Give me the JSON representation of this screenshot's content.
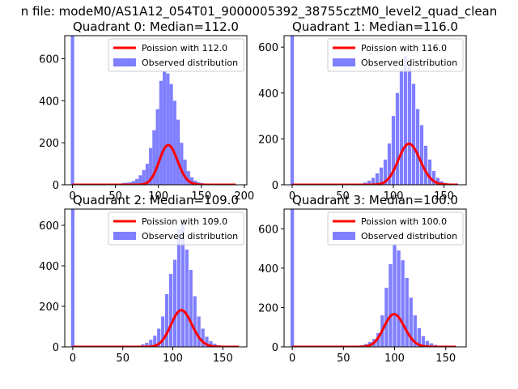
{
  "figure": {
    "suptitle": "n file: modeM0/AS1A12_054T01_9000005392_38755cztM0_level2_quad_clean",
    "colors": {
      "hist": "#0000ff",
      "hist_alpha": 0.5,
      "fit": "#ff0000"
    }
  },
  "chart_data": [
    {
      "type": "bar",
      "title": "Quadrant 0: Median=112.0",
      "xlim": [
        -9,
        203
      ],
      "ylim": [
        0,
        710
      ],
      "xticks": [
        0,
        50,
        100,
        150,
        200
      ],
      "xtick_labels": [
        "0",
        "50",
        "100",
        "150",
        "200"
      ],
      "yticks": [
        0,
        200,
        400,
        600
      ],
      "ytick_labels": [
        "0",
        "200",
        "400",
        "600"
      ],
      "bin_width": 3.9,
      "histogram": [
        {
          "x": 0,
          "y": 710
        },
        {
          "x": 55,
          "y": 5
        },
        {
          "x": 59,
          "y": 8
        },
        {
          "x": 63,
          "y": 10
        },
        {
          "x": 67,
          "y": 12
        },
        {
          "x": 71,
          "y": 18
        },
        {
          "x": 75,
          "y": 28
        },
        {
          "x": 79,
          "y": 45
        },
        {
          "x": 83,
          "y": 70
        },
        {
          "x": 87,
          "y": 100
        },
        {
          "x": 91,
          "y": 175
        },
        {
          "x": 95,
          "y": 260
        },
        {
          "x": 99,
          "y": 360
        },
        {
          "x": 103,
          "y": 495
        },
        {
          "x": 107,
          "y": 540
        },
        {
          "x": 111,
          "y": 530
        },
        {
          "x": 115,
          "y": 480
        },
        {
          "x": 119,
          "y": 400
        },
        {
          "x": 123,
          "y": 310
        },
        {
          "x": 127,
          "y": 200
        },
        {
          "x": 131,
          "y": 120
        },
        {
          "x": 135,
          "y": 65
        },
        {
          "x": 139,
          "y": 35
        },
        {
          "x": 143,
          "y": 20
        },
        {
          "x": 147,
          "y": 12
        },
        {
          "x": 151,
          "y": 8
        },
        {
          "x": 155,
          "y": 5
        }
      ],
      "fit": {
        "label": "Poission with 112.0",
        "lambda": 112.0,
        "x_range": [
          0,
          190
        ]
      },
      "legend": {
        "hist_label": "Observed distribution",
        "placement": "upper right"
      }
    },
    {
      "type": "bar",
      "title": "Quadrant 1: Median=116.0",
      "xlim": [
        -8,
        172
      ],
      "ylim": [
        0,
        650
      ],
      "xticks": [
        0,
        50,
        100,
        150
      ],
      "xtick_labels": [
        "0",
        "50",
        "100",
        "150"
      ],
      "yticks": [
        0,
        200,
        400,
        600
      ],
      "ytick_labels": [
        "0",
        "200",
        "400",
        "600"
      ],
      "bin_width": 3.4,
      "histogram": [
        {
          "x": 0,
          "y": 650
        },
        {
          "x": 72,
          "y": 10
        },
        {
          "x": 76,
          "y": 18
        },
        {
          "x": 80,
          "y": 30
        },
        {
          "x": 84,
          "y": 50
        },
        {
          "x": 88,
          "y": 75
        },
        {
          "x": 92,
          "y": 110
        },
        {
          "x": 96,
          "y": 180
        },
        {
          "x": 100,
          "y": 300
        },
        {
          "x": 104,
          "y": 400
        },
        {
          "x": 108,
          "y": 500
        },
        {
          "x": 112,
          "y": 560
        },
        {
          "x": 116,
          "y": 520
        },
        {
          "x": 120,
          "y": 440
        },
        {
          "x": 124,
          "y": 330
        },
        {
          "x": 128,
          "y": 260
        },
        {
          "x": 132,
          "y": 170
        },
        {
          "x": 136,
          "y": 110
        },
        {
          "x": 140,
          "y": 60
        },
        {
          "x": 144,
          "y": 30
        },
        {
          "x": 148,
          "y": 15
        },
        {
          "x": 152,
          "y": 8
        }
      ],
      "fit": {
        "label": "Poission with 116.0",
        "lambda": 116.0,
        "x_range": [
          0,
          164
        ]
      },
      "legend": {
        "hist_label": "Observed distribution",
        "placement": "upper right"
      }
    },
    {
      "type": "bar",
      "title": "Quadrant 2: Median=109.0",
      "xlim": [
        -8,
        174
      ],
      "ylim": [
        0,
        680
      ],
      "xticks": [
        0,
        50,
        100,
        150
      ],
      "xtick_labels": [
        "0",
        "50",
        "100",
        "150"
      ],
      "yticks": [
        0,
        200,
        400,
        600
      ],
      "ytick_labels": [
        "0",
        "200",
        "400",
        "600"
      ],
      "bin_width": 3.4,
      "histogram": [
        {
          "x": 0,
          "y": 680
        },
        {
          "x": 70,
          "y": 12
        },
        {
          "x": 74,
          "y": 20
        },
        {
          "x": 78,
          "y": 35
        },
        {
          "x": 82,
          "y": 55
        },
        {
          "x": 86,
          "y": 90
        },
        {
          "x": 90,
          "y": 150
        },
        {
          "x": 94,
          "y": 260
        },
        {
          "x": 98,
          "y": 360
        },
        {
          "x": 102,
          "y": 430
        },
        {
          "x": 106,
          "y": 580
        },
        {
          "x": 110,
          "y": 610
        },
        {
          "x": 114,
          "y": 480
        },
        {
          "x": 118,
          "y": 380
        },
        {
          "x": 122,
          "y": 250
        },
        {
          "x": 126,
          "y": 150
        },
        {
          "x": 130,
          "y": 90
        },
        {
          "x": 134,
          "y": 50
        },
        {
          "x": 138,
          "y": 28
        },
        {
          "x": 142,
          "y": 15
        },
        {
          "x": 146,
          "y": 8
        },
        {
          "x": 150,
          "y": 5
        }
      ],
      "fit": {
        "label": "Poission with 109.0",
        "lambda": 109.0,
        "x_range": [
          0,
          166
        ]
      },
      "legend": {
        "hist_label": "Observed distribution",
        "placement": "upper right"
      }
    },
    {
      "type": "bar",
      "title": "Quadrant 3: Median=100.0",
      "xlim": [
        -8,
        170
      ],
      "ylim": [
        0,
        700
      ],
      "xticks": [
        0,
        50,
        100,
        150
      ],
      "xtick_labels": [
        "0",
        "50",
        "100",
        "150"
      ],
      "yticks": [
        0,
        200,
        400,
        600
      ],
      "ytick_labels": [
        "0",
        "200",
        "400",
        "600"
      ],
      "bin_width": 3.4,
      "histogram": [
        {
          "x": 0,
          "y": 700
        },
        {
          "x": 64,
          "y": 5
        },
        {
          "x": 68,
          "y": 8
        },
        {
          "x": 72,
          "y": 15
        },
        {
          "x": 76,
          "y": 25
        },
        {
          "x": 80,
          "y": 40
        },
        {
          "x": 84,
          "y": 70
        },
        {
          "x": 88,
          "y": 160
        },
        {
          "x": 92,
          "y": 300
        },
        {
          "x": 96,
          "y": 420
        },
        {
          "x": 100,
          "y": 520
        },
        {
          "x": 104,
          "y": 490
        },
        {
          "x": 108,
          "y": 440
        },
        {
          "x": 112,
          "y": 350
        },
        {
          "x": 116,
          "y": 250
        },
        {
          "x": 120,
          "y": 160
        },
        {
          "x": 124,
          "y": 95
        },
        {
          "x": 128,
          "y": 55
        },
        {
          "x": 132,
          "y": 30
        },
        {
          "x": 136,
          "y": 18
        },
        {
          "x": 140,
          "y": 10
        },
        {
          "x": 144,
          "y": 5
        }
      ],
      "fit": {
        "label": "Poission with 100.0",
        "lambda": 100.0,
        "x_range": [
          0,
          160
        ]
      },
      "legend": {
        "hist_label": "Observed distribution",
        "placement": "upper right"
      }
    }
  ]
}
